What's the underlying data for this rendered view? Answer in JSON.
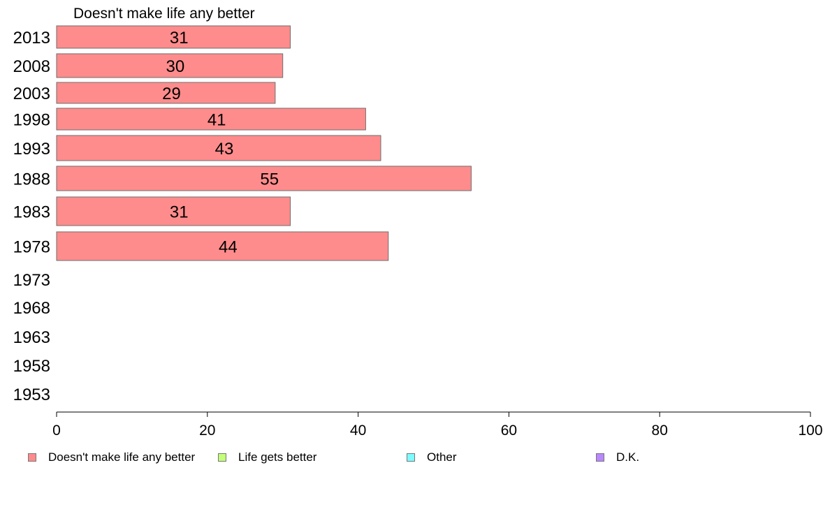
{
  "chart_data": {
    "type": "bar",
    "orientation": "horizontal",
    "title": "Doesn't make life any better",
    "categories": [
      "2013",
      "2008",
      "2003",
      "1998",
      "1993",
      "1988",
      "1983",
      "1978",
      "1973",
      "1968",
      "1963",
      "1958",
      "1953"
    ],
    "series": [
      {
        "name": "Doesn't make life any better",
        "color": "#ff8c8c",
        "values": [
          31,
          30,
          29,
          41,
          43,
          55,
          31,
          44,
          null,
          null,
          null,
          null,
          null
        ]
      },
      {
        "name": "Life gets better",
        "color": "#c4ff7a",
        "values": [
          null,
          null,
          null,
          null,
          null,
          null,
          null,
          null,
          null,
          null,
          null,
          null,
          null
        ]
      },
      {
        "name": "Other",
        "color": "#7dfcff",
        "values": [
          null,
          null,
          null,
          null,
          null,
          null,
          null,
          null,
          null,
          null,
          null,
          null,
          null
        ]
      },
      {
        "name": "D.K.",
        "color": "#b987ff",
        "values": [
          null,
          null,
          null,
          null,
          null,
          null,
          null,
          null,
          null,
          null,
          null,
          null,
          null
        ]
      }
    ],
    "data_labels": [
      "31",
      "30",
      "29",
      "41",
      "43",
      "55",
      "31",
      "44",
      "",
      "",
      "",
      "",
      ""
    ],
    "xlim": [
      0,
      100
    ],
    "xticks": [
      "0",
      "20",
      "40",
      "60",
      "80",
      "100"
    ],
    "xlabel": "",
    "ylabel": "",
    "grid": false,
    "legend_placement": "bottom"
  }
}
